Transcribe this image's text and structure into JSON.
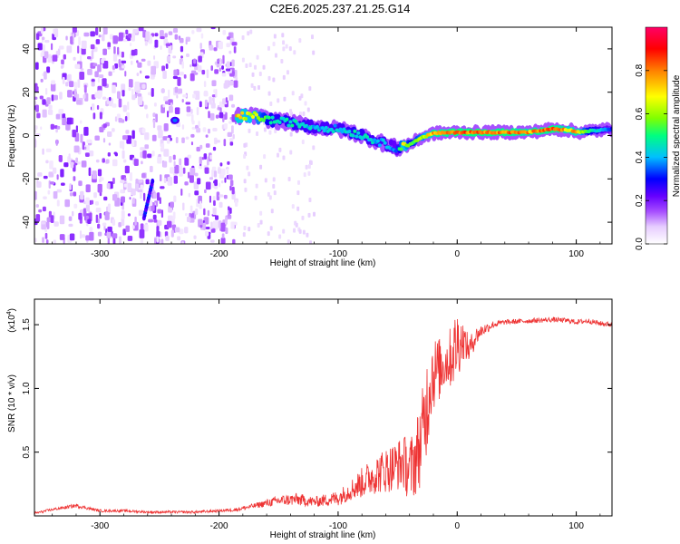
{
  "figure_title": "C2E6.2025.237.21.25.G14",
  "chart_data": [
    {
      "type": "heatmap",
      "title": "C2E6.2025.237.21.25.G14",
      "xlabel": "Height of straight line (km)",
      "ylabel": "Frequency (Hz)",
      "xlim": [
        -355,
        130
      ],
      "ylim": [
        -50,
        50
      ],
      "xticks": [
        -300,
        -200,
        -100,
        0,
        100
      ],
      "yticks": [
        -40,
        -20,
        0,
        20,
        40
      ],
      "xtick_labels": [
        "-300",
        "-200",
        "-100",
        "0",
        "100"
      ],
      "ytick_labels": [
        "-40",
        "-20",
        "0",
        "20",
        "40"
      ],
      "colorbar": {
        "label": "Normalized spectral amplitude",
        "range": [
          0,
          1
        ],
        "ticks": [
          0.0,
          0.2,
          0.4,
          0.6,
          0.8
        ],
        "tick_labels": [
          "0.0",
          "0.2",
          "0.4",
          "0.6",
          "0.8"
        ],
        "colormap": [
          "#ffffff",
          "#e6ccff",
          "#a64dff",
          "#6600ff",
          "#0000ff",
          "#00bfff",
          "#00ff80",
          "#80ff00",
          "#ffff00",
          "#ff8000",
          "#ff0000",
          "#ff0066"
        ]
      },
      "noise_region_x": [
        -355,
        -185
      ],
      "signal_ridge": {
        "x": [
          -185,
          -170,
          -155,
          -140,
          -120,
          -100,
          -85,
          -70,
          -60,
          -50,
          -45,
          -40,
          -30,
          -20,
          0,
          20,
          40,
          60,
          80,
          95,
          100,
          110,
          130
        ],
        "y": [
          9,
          9,
          7,
          6,
          4,
          3,
          1,
          -2,
          -4,
          -6,
          -5,
          -4,
          -1,
          1,
          1.5,
          1.5,
          1.5,
          1.5,
          3,
          2.5,
          1.5,
          2,
          3
        ],
        "amplitude": [
          0.8,
          0.75,
          0.55,
          0.55,
          0.5,
          0.5,
          0.55,
          0.5,
          0.5,
          0.45,
          0.85,
          0.6,
          0.7,
          0.85,
          0.9,
          0.9,
          0.9,
          0.85,
          0.9,
          0.8,
          0.85,
          0.6,
          0.4
        ]
      },
      "features": [
        {
          "x": -260,
          "y": -30,
          "note": "diagonal streak"
        },
        {
          "x": -237,
          "y": 7,
          "note": "blob"
        }
      ]
    },
    {
      "type": "line",
      "xlabel": "Height of straight line (km)",
      "ylabel": "SNR (10 * v/v)",
      "multiplier_label": "(x10^4)",
      "multiplier_base": "(x10",
      "multiplier_exp": "4",
      "multiplier_close": ")",
      "color": "#ee3333",
      "xlim": [
        -355,
        130
      ],
      "ylim": [
        0,
        1.7
      ],
      "xticks": [
        -300,
        -200,
        -100,
        0,
        100
      ],
      "yticks": [
        0.5,
        1.0,
        1.5
      ],
      "xtick_labels": [
        "-300",
        "-200",
        "-100",
        "0",
        "100"
      ],
      "ytick_labels": [
        "0.5",
        "1.0",
        "1.5"
      ],
      "series": [
        {
          "name": "SNR",
          "x": [
            -355,
            -340,
            -320,
            -300,
            -280,
            -260,
            -240,
            -220,
            -200,
            -185,
            -170,
            -150,
            -135,
            -120,
            -100,
            -90,
            -80,
            -70,
            -60,
            -50,
            -45,
            -40,
            -35,
            -30,
            -25,
            -22,
            -20,
            -15,
            -10,
            -5,
            0,
            5,
            10,
            15,
            20,
            30,
            40,
            60,
            80,
            95,
            100,
            110,
            120,
            130
          ],
          "y": [
            0.02,
            0.05,
            0.08,
            0.04,
            0.04,
            0.03,
            0.03,
            0.03,
            0.04,
            0.05,
            0.08,
            0.12,
            0.13,
            0.11,
            0.14,
            0.2,
            0.26,
            0.32,
            0.36,
            0.4,
            0.42,
            0.35,
            0.45,
            0.6,
            0.9,
            1.1,
            1.12,
            1.15,
            1.2,
            1.25,
            1.35,
            1.38,
            1.3,
            1.4,
            1.45,
            1.5,
            1.52,
            1.53,
            1.54,
            1.53,
            1.52,
            1.53,
            1.51,
            1.5
          ],
          "noise_amplitude": [
            0.01,
            0.01,
            0.015,
            0.01,
            0.01,
            0.01,
            0.01,
            0.01,
            0.01,
            0.015,
            0.02,
            0.04,
            0.05,
            0.04,
            0.06,
            0.08,
            0.12,
            0.15,
            0.18,
            0.2,
            0.22,
            0.25,
            0.3,
            0.35,
            0.4,
            0.35,
            0.3,
            0.25,
            0.2,
            0.25,
            0.3,
            0.15,
            0.1,
            0.08,
            0.05,
            0.03,
            0.02,
            0.02,
            0.02,
            0.02,
            0.02,
            0.02,
            0.02,
            0.02
          ]
        }
      ]
    }
  ]
}
